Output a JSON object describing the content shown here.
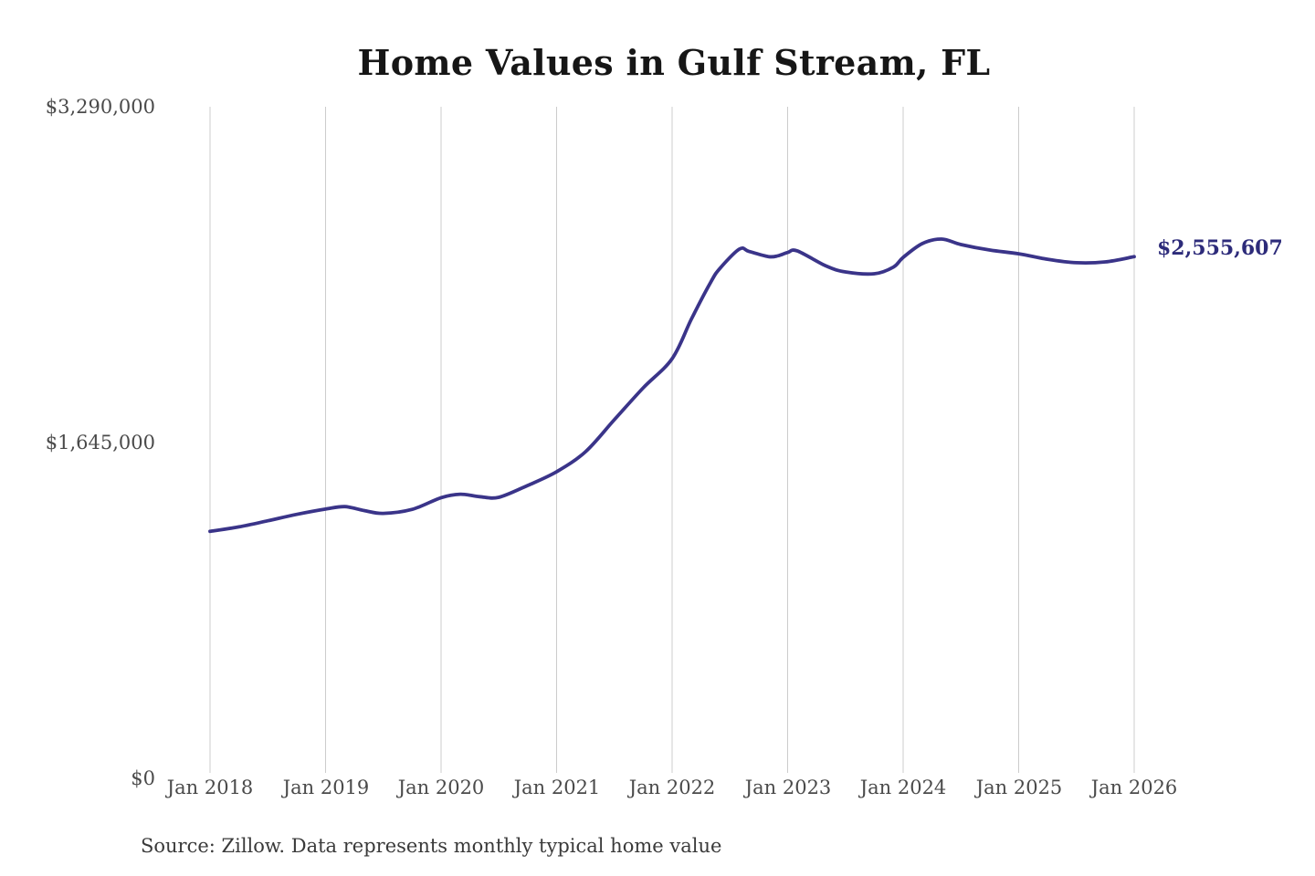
{
  "title": "Home Values in Gulf Stream, FL",
  "source_note": "Source: Zillow. Data represents monthly typical home value",
  "colors": {
    "background": "#ffffff",
    "line": "#3a3489",
    "end_label": "#2d2b7a",
    "gridline": "#cccccc",
    "title_text": "#161616",
    "axis_text": "#4a4a4a",
    "source_text": "#3a3a3a"
  },
  "y_axis": {
    "ticks": [
      {
        "label": "$0",
        "value": 0
      },
      {
        "label": "$1,645,000",
        "value": 1645000
      },
      {
        "label": "$3,290,000",
        "value": 3290000
      }
    ]
  },
  "chart_data": {
    "type": "line",
    "title": "Home Values in Gulf Stream, FL",
    "xlabel": "",
    "ylabel": "",
    "ylim": [
      0,
      3290000
    ],
    "grid": "vertical-only",
    "legend": "none",
    "line_color": "#3a3489",
    "end_label": "$2,555,607",
    "end_value": 2555607,
    "x_ticks": [
      {
        "label": "Jan 2018",
        "month": "2018-01"
      },
      {
        "label": "Jan 2019",
        "month": "2019-01"
      },
      {
        "label": "Jan 2020",
        "month": "2020-01"
      },
      {
        "label": "Jan 2021",
        "month": "2021-01"
      },
      {
        "label": "Jan 2022",
        "month": "2022-01"
      },
      {
        "label": "Jan 2023",
        "month": "2023-01"
      },
      {
        "label": "Jan 2024",
        "month": "2024-01"
      },
      {
        "label": "Jan 2025",
        "month": "2025-01"
      },
      {
        "label": "Jan 2026",
        "month": "2026-01"
      }
    ],
    "x": [
      "2018-01",
      "2018-04",
      "2018-07",
      "2018-10",
      "2019-01",
      "2019-03",
      "2019-05",
      "2019-07",
      "2019-10",
      "2020-01",
      "2020-03",
      "2020-05",
      "2020-07",
      "2020-10",
      "2021-01",
      "2021-04",
      "2021-07",
      "2021-10",
      "2022-01",
      "2022-03",
      "2022-05",
      "2022-06",
      "2022-08",
      "2022-09",
      "2022-11",
      "2022-12",
      "2023-01",
      "2023-02",
      "2023-05",
      "2023-07",
      "2023-10",
      "2023-12",
      "2024-01",
      "2024-03",
      "2024-05",
      "2024-07",
      "2024-10",
      "2025-01",
      "2025-04",
      "2025-07",
      "2025-10",
      "2026-01"
    ],
    "values": [
      1210000,
      1232000,
      1262000,
      1293000,
      1319000,
      1331000,
      1312000,
      1298000,
      1318000,
      1375000,
      1392000,
      1380000,
      1377000,
      1435000,
      1502000,
      1600000,
      1757000,
      1913000,
      2056000,
      2250000,
      2430000,
      2500000,
      2593000,
      2581000,
      2556000,
      2560000,
      2576000,
      2584000,
      2510000,
      2481000,
      2472000,
      2505000,
      2552000,
      2620000,
      2642000,
      2615000,
      2588000,
      2570000,
      2543000,
      2526000,
      2530000,
      2555607
    ]
  }
}
